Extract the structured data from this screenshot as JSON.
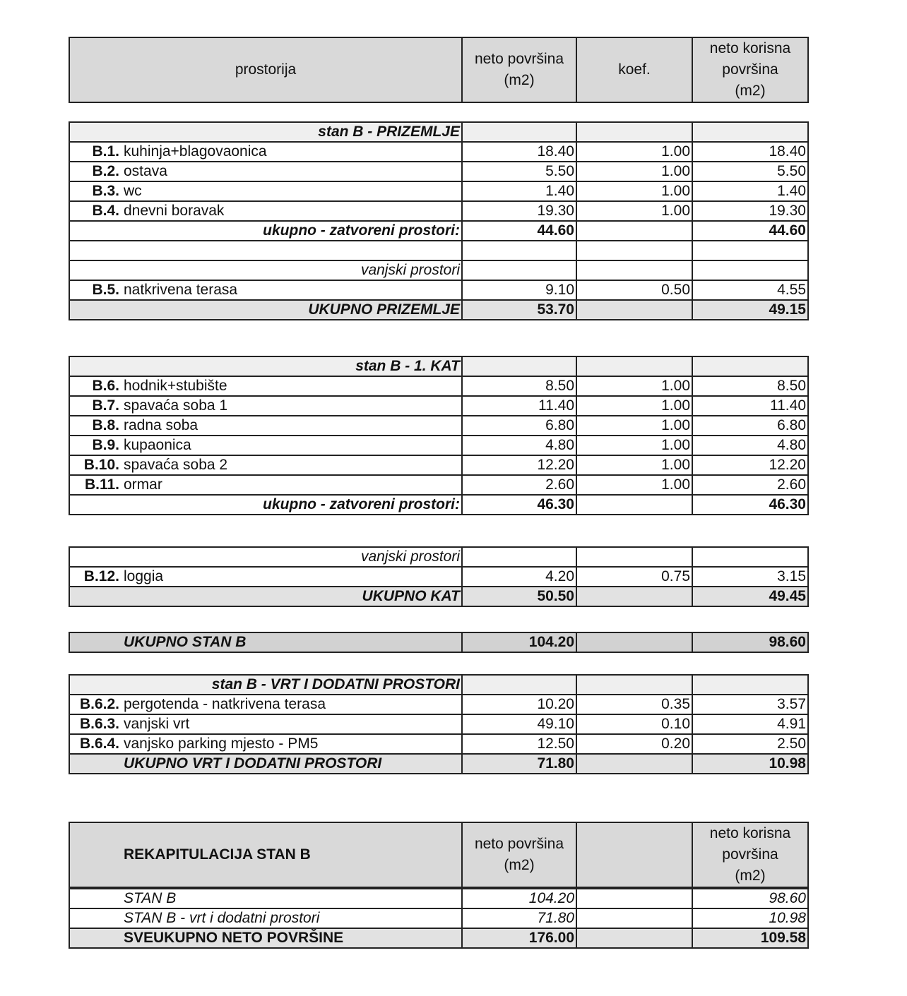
{
  "header": {
    "room": "prostorija",
    "net_area": [
      "neto površina",
      "(m2)"
    ],
    "coef": "koef.",
    "useful_area": [
      "neto korisna",
      "površina",
      "(m2)"
    ]
  },
  "ground_floor": {
    "title": "stan B - PRIZEMLJE",
    "rooms": [
      {
        "code": "B.1.",
        "name": "kuhinja+blagovaonica",
        "area": "18.40",
        "coef": "1.00",
        "useful": "18.40"
      },
      {
        "code": "B.2.",
        "name": "ostava",
        "area": "5.50",
        "coef": "1.00",
        "useful": "5.50"
      },
      {
        "code": "B.3.",
        "name": "wc",
        "area": "1.40",
        "coef": "1.00",
        "useful": "1.40"
      },
      {
        "code": "B.4.",
        "name": "dnevni boravak",
        "area": "19.30",
        "coef": "1.00",
        "useful": "19.30"
      }
    ],
    "subtotal": {
      "label": "ukupno - zatvoreni prostori:",
      "area": "44.60",
      "useful": "44.60"
    },
    "outdoor_heading": "vanjski prostori",
    "outdoor_rooms": [
      {
        "code": "B.5.",
        "name": "natkrivena terasa",
        "area": "9.10",
        "coef": "0.50",
        "useful": "4.55"
      }
    ],
    "total": {
      "label": "UKUPNO PRIZEMLJE",
      "area": "53.70",
      "useful": "49.15"
    }
  },
  "first_floor": {
    "title": "stan B - 1. KAT",
    "rooms": [
      {
        "code": "B.6.",
        "name": "hodnik+stubište",
        "area": "8.50",
        "coef": "1.00",
        "useful": "8.50"
      },
      {
        "code": "B.7.",
        "name": "spavaća soba 1",
        "area": "11.40",
        "coef": "1.00",
        "useful": "11.40"
      },
      {
        "code": "B.8.",
        "name": "radna soba",
        "area": "6.80",
        "coef": "1.00",
        "useful": "6.80"
      },
      {
        "code": "B.9.",
        "name": "kupaonica",
        "area": "4.80",
        "coef": "1.00",
        "useful": "4.80"
      },
      {
        "code": "B.10.",
        "name": "spavaća soba 2",
        "area": "12.20",
        "coef": "1.00",
        "useful": "12.20"
      },
      {
        "code": "B.11.",
        "name": "ormar",
        "area": "2.60",
        "coef": "1.00",
        "useful": "2.60"
      }
    ],
    "subtotal": {
      "label": "ukupno - zatvoreni prostori:",
      "area": "46.30",
      "useful": "46.30"
    }
  },
  "first_floor_outdoor": {
    "outdoor_heading": "vanjski prostori",
    "outdoor_rooms": [
      {
        "code": "B.12.",
        "name": "loggia",
        "area": "4.20",
        "coef": "0.75",
        "useful": "3.15"
      }
    ],
    "total": {
      "label": "UKUPNO KAT",
      "area": "50.50",
      "useful": "49.45"
    }
  },
  "apartment_total": {
    "label": "UKUPNO STAN B",
    "area": "104.20",
    "useful": "98.60"
  },
  "garden": {
    "title": "stan B - VRT  I DODATNI PROSTORI",
    "rooms": [
      {
        "code": "B.6.2.",
        "name": "pergotenda - natkrivena terasa",
        "area": "10.20",
        "coef": "0.35",
        "useful": "3.57"
      },
      {
        "code": "B.6.3.",
        "name": "vanjski vrt",
        "area": "49.10",
        "coef": "0.10",
        "useful": "4.91"
      },
      {
        "code": "B.6.4.",
        "name": "vanjsko parking mjesto - PM5",
        "area": "12.50",
        "coef": "0.20",
        "useful": "2.50"
      }
    ],
    "total": {
      "label": "UKUPNO VRT I DODATNI PROSTORI",
      "area": "71.80",
      "useful": "10.98"
    }
  },
  "recap": {
    "title": "REKAPITULACIJA STAN B",
    "net_area": [
      "neto površina",
      "(m2)"
    ],
    "useful_area": [
      "neto korisna",
      "površina",
      "(m2)"
    ],
    "rows": [
      {
        "label": "STAN B",
        "area": "104.20",
        "useful": "98.60"
      },
      {
        "label": "STAN B - vrt i dodatni prostori",
        "area": "71.80",
        "useful": "10.98"
      }
    ],
    "total": {
      "label": "SVEUKUPNO NETO POVRŠINE",
      "area": "176.00",
      "useful": "109.58"
    }
  }
}
